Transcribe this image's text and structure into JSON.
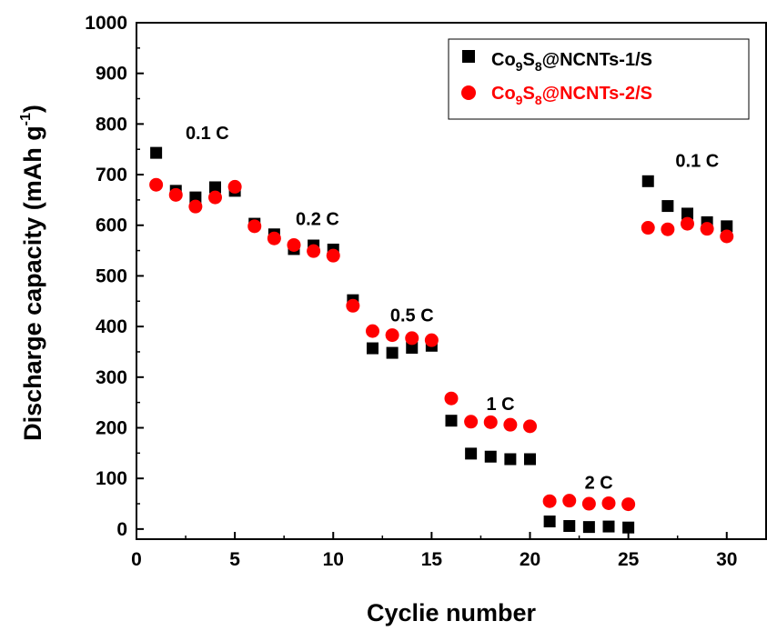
{
  "chart_data": {
    "type": "scatter",
    "xlabel": "Cyclie number",
    "ylabel": {
      "main": "Discharge capacity (mAh g",
      "sup": "-1",
      "close": ")"
    },
    "xlim": [
      0,
      32
    ],
    "ylim": [
      -20,
      1000
    ],
    "xticks": [
      0,
      5,
      10,
      15,
      20,
      25,
      30
    ],
    "yticks": [
      0,
      100,
      200,
      300,
      400,
      500,
      600,
      700,
      800,
      900,
      1000
    ],
    "grid": false,
    "legend_position": "top-right",
    "series": [
      {
        "name": {
          "a": "Co",
          "s1": "9",
          "b": "S",
          "s2": "8",
          "c": "@NCNTs-1/S"
        },
        "marker": "square",
        "color": "#000000",
        "x": [
          1,
          2,
          3,
          4,
          5,
          6,
          7,
          8,
          9,
          10,
          11,
          12,
          13,
          14,
          15,
          16,
          17,
          18,
          19,
          20,
          21,
          22,
          23,
          24,
          25,
          26,
          27,
          28,
          29,
          30
        ],
        "y": [
          743,
          668,
          655,
          675,
          668,
          603,
          582,
          553,
          560,
          552,
          452,
          357,
          348,
          358,
          362,
          214,
          149,
          143,
          138,
          138,
          15,
          6,
          4,
          5,
          3,
          687,
          638,
          623,
          606,
          598
        ]
      },
      {
        "name": {
          "a": "Co",
          "s1": "9",
          "b": "S",
          "s2": "8",
          "c": "@NCNTs-2/S"
        },
        "marker": "circle",
        "color": "#ff0000",
        "x": [
          1,
          2,
          3,
          4,
          5,
          6,
          7,
          8,
          9,
          10,
          11,
          12,
          13,
          14,
          15,
          16,
          17,
          18,
          19,
          20,
          21,
          22,
          23,
          24,
          25,
          26,
          27,
          28,
          29,
          30
        ],
        "y": [
          680,
          660,
          637,
          655,
          676,
          598,
          574,
          561,
          549,
          540,
          441,
          391,
          383,
          377,
          373,
          258,
          212,
          211,
          206,
          203,
          55,
          56,
          50,
          51,
          49,
          595,
          592,
          603,
          593,
          578
        ]
      }
    ],
    "annotations": [
      {
        "text": "0.1 C",
        "x": 3.6,
        "y": 770
      },
      {
        "text": "0.2 C",
        "x": 9.2,
        "y": 600
      },
      {
        "text": "0.5 C",
        "x": 14.0,
        "y": 410
      },
      {
        "text": "1 C",
        "x": 18.5,
        "y": 235
      },
      {
        "text": "2 C",
        "x": 23.5,
        "y": 80
      },
      {
        "text": "0.1 C",
        "x": 28.5,
        "y": 715
      }
    ]
  }
}
